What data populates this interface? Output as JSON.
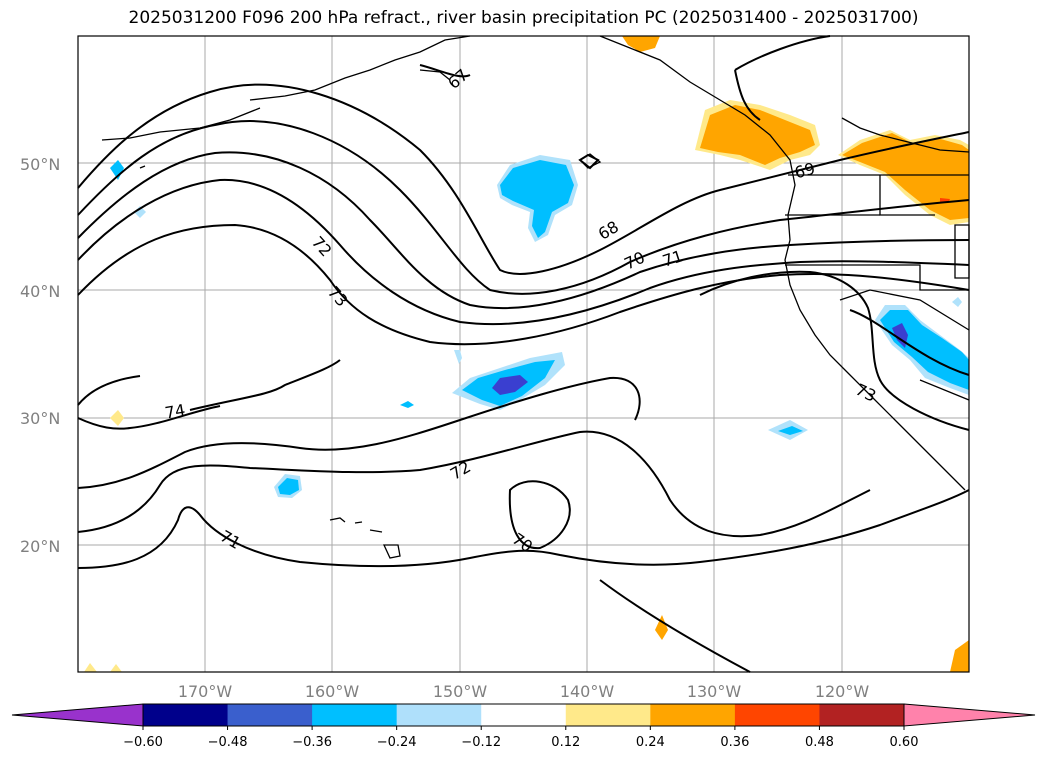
{
  "title": "2025031200 F096 200 hPa refract., river basin precipitation PC (2025031400 - 2025031700)",
  "map": {
    "lat_ticks": [
      "50°N",
      "40°N",
      "30°N",
      "20°N"
    ],
    "lon_ticks": [
      "170°W",
      "160°W",
      "150°W",
      "140°W",
      "130°W",
      "120°W"
    ],
    "contour_levels": [
      "67",
      "68",
      "69",
      "70",
      "71",
      "72",
      "73",
      "74",
      "72",
      "71",
      "70",
      "73"
    ],
    "colors": {
      "neg_strong": "#3a3fd0",
      "neg_mid": "#00bfff",
      "neg_light": "#b0e2fb",
      "pos_light": "#ffe98a",
      "pos_mid": "#ffa500",
      "pos_strong": "#ff4000"
    }
  },
  "colorbar": {
    "labels": [
      "−0.60",
      "−0.48",
      "−0.36",
      "−0.24",
      "−0.12",
      "0.12",
      "0.24",
      "0.36",
      "0.48",
      "0.60"
    ],
    "colors": [
      "#9932cc",
      "#00008b",
      "#3a5fcd",
      "#00bfff",
      "#afe0fb",
      "#ffffff",
      "#ffe98a",
      "#ffa500",
      "#ff4500",
      "#b22222",
      "#ff82ab"
    ]
  }
}
